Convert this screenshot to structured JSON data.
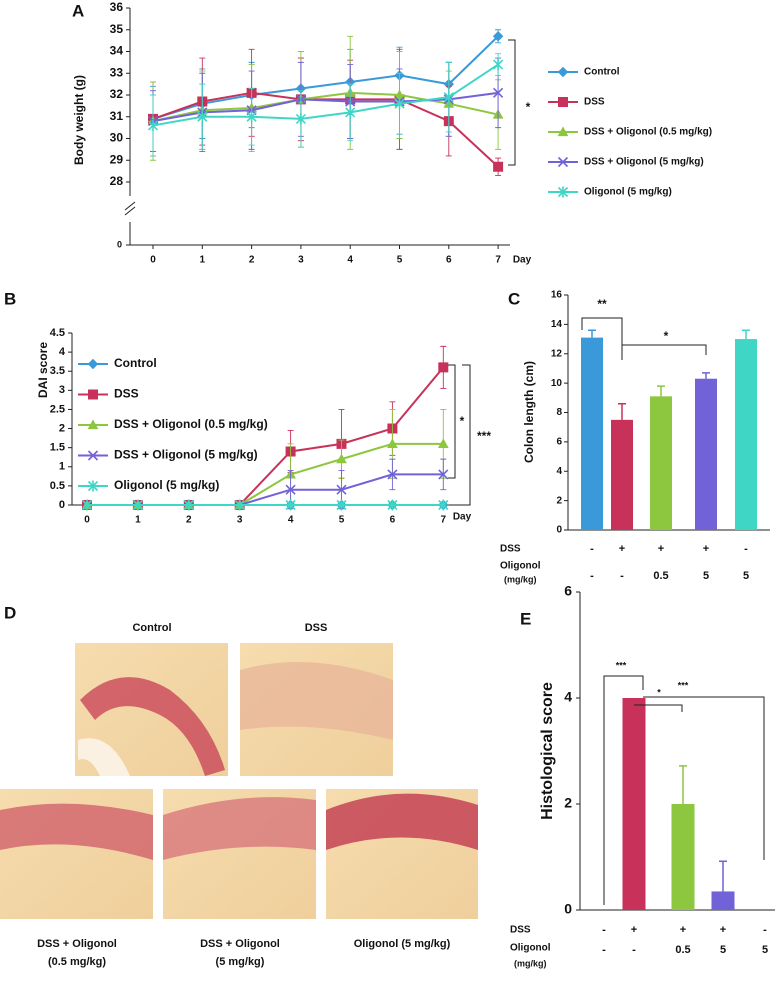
{
  "panel_labels": [
    "A",
    "B",
    "C",
    "D",
    "E"
  ],
  "chart_data": [
    {
      "type": "line",
      "x": [
        0,
        1,
        2,
        3,
        4,
        5,
        6,
        7
      ],
      "x_label": "Day",
      "y_label": "Body weight (g)",
      "ylim": [
        28,
        36
      ],
      "yticks": [
        28,
        29,
        30,
        31,
        32,
        33,
        34,
        35,
        36
      ],
      "y_break_tick": 0,
      "legend": "right",
      "annotations": [
        "*"
      ],
      "series": [
        {
          "name": "Control",
          "color": "#3a9ad9",
          "values": [
            30.9,
            31.6,
            32.0,
            32.3,
            32.6,
            32.9,
            32.5,
            34.7
          ],
          "errors": [
            1.5,
            1.6,
            1.5,
            1.4,
            1.5,
            1.3,
            1.0,
            0.3
          ]
        },
        {
          "name": "DSS",
          "color": "#c8325a",
          "values": [
            30.9,
            31.7,
            32.1,
            31.8,
            31.8,
            31.8,
            30.8,
            28.7
          ],
          "errors": [
            1.7,
            2.0,
            2.0,
            1.9,
            1.8,
            2.3,
            1.6,
            0.4
          ]
        },
        {
          "name": "DSS + Oligonol (0.5 mg/kg)",
          "color": "#8dc63f",
          "values": [
            30.8,
            31.3,
            31.4,
            31.8,
            32.1,
            32.0,
            31.6,
            31.1
          ],
          "errors": [
            1.8,
            1.8,
            2.0,
            2.2,
            2.6,
            2.0,
            1.5,
            1.6
          ]
        },
        {
          "name": "DSS + Oligonol (5 mg/kg)",
          "color": "#7162d8",
          "values": [
            30.8,
            31.2,
            31.3,
            31.8,
            31.7,
            31.7,
            31.8,
            32.1
          ],
          "errors": [
            1.4,
            1.8,
            1.8,
            1.7,
            1.7,
            1.5,
            1.7,
            1.6
          ]
        },
        {
          "name": "Oligonol (5 mg/kg)",
          "color": "#3fd6c6",
          "values": [
            30.6,
            31.0,
            31.0,
            30.9,
            31.2,
            31.6,
            31.9,
            33.4
          ],
          "errors": [
            1.4,
            1.5,
            1.3,
            1.3,
            1.3,
            1.4,
            1.6,
            0.5
          ]
        }
      ]
    },
    {
      "type": "line",
      "x": [
        0,
        1,
        2,
        3,
        4,
        5,
        6,
        7
      ],
      "x_label": "Day",
      "y_label": "DAI score",
      "ylim": [
        0,
        4.5
      ],
      "yticks": [
        0,
        0.5,
        1,
        1.5,
        2,
        2.5,
        3,
        3.5,
        4,
        4.5
      ],
      "legend": "upper left",
      "annotations": [
        "*",
        "***"
      ],
      "series": [
        {
          "name": "Control",
          "color": "#3a9ad9",
          "values": [
            0,
            0,
            0,
            0,
            0,
            0,
            0,
            0
          ],
          "errors": [
            0,
            0,
            0,
            0,
            0,
            0,
            0,
            0
          ]
        },
        {
          "name": "DSS",
          "color": "#c8325a",
          "values": [
            0,
            0,
            0,
            0,
            1.4,
            1.6,
            2.0,
            3.6
          ],
          "errors": [
            0,
            0,
            0,
            0,
            0.55,
            0.9,
            0.7,
            0.55
          ]
        },
        {
          "name": "DSS + Oligonol (0.5 mg/kg)",
          "color": "#8dc63f",
          "values": [
            0,
            0,
            0,
            0,
            0.8,
            1.2,
            1.6,
            1.6
          ],
          "errors": [
            0,
            0,
            0,
            0,
            0.8,
            0.5,
            0.9,
            0.9
          ]
        },
        {
          "name": "DSS + Oligonol (5 mg/kg)",
          "color": "#7162d8",
          "values": [
            0,
            0,
            0,
            0,
            0.4,
            0.4,
            0.8,
            0.8
          ],
          "errors": [
            0,
            0,
            0,
            0,
            0.5,
            0.5,
            0.4,
            0.4
          ]
        },
        {
          "name": "Oligonol (5 mg/kg)",
          "color": "#3fd6c6",
          "values": [
            0,
            0,
            0,
            0,
            0,
            0,
            0,
            0
          ],
          "errors": [
            0,
            0,
            0,
            0,
            0,
            0,
            0,
            0
          ]
        }
      ]
    },
    {
      "type": "bar",
      "y_label": "Colon length (cm)",
      "ylim": [
        0,
        16
      ],
      "yticks": [
        0,
        2,
        4,
        6,
        8,
        10,
        12,
        14,
        16
      ],
      "values": [
        13.1,
        7.5,
        9.1,
        10.3,
        13.0
      ],
      "errors": [
        0.5,
        1.1,
        0.7,
        0.4,
        0.6
      ],
      "colors": [
        "#3a9ad9",
        "#c8325a",
        "#8dc63f",
        "#7162d8",
        "#3fd6c6"
      ],
      "condition_rows": [
        {
          "label": "DSS",
          "values": [
            "-",
            "+",
            "+",
            "+",
            "-"
          ]
        },
        {
          "label": "Oligonol",
          "unit": "(mg/kg)",
          "values": [
            "-",
            "-",
            "0.5",
            "5",
            "5"
          ]
        }
      ],
      "annotations": [
        "**",
        "*"
      ]
    },
    {
      "type": "bar",
      "y_label": "Histological score",
      "ylim": [
        0,
        6
      ],
      "yticks": [
        0,
        2,
        4,
        6
      ],
      "values": [
        0,
        4.0,
        2.0,
        0.35,
        0
      ],
      "errors": [
        0,
        0,
        0.72,
        0.57,
        0
      ],
      "colors": [
        "#3a9ad9",
        "#c8325a",
        "#8dc63f",
        "#7162d8",
        "#3fd6c6"
      ],
      "condition_rows": [
        {
          "label": "DSS",
          "values": [
            "-",
            "+",
            "+",
            "+",
            "-"
          ]
        },
        {
          "label": "Oligonol",
          "unit": "(mg/kg)",
          "values": [
            "-",
            "-",
            "0.5",
            "5",
            "5"
          ]
        }
      ],
      "annotations": [
        "***",
        "*",
        "***"
      ]
    }
  ],
  "histology": {
    "images": [
      {
        "lines": [
          "Control"
        ]
      },
      {
        "lines": [
          "DSS"
        ]
      },
      {
        "lines": [
          "DSS + Oligonol",
          "(0.5 mg/kg)"
        ]
      },
      {
        "lines": [
          "DSS + Oligonol",
          "(5 mg/kg)"
        ]
      },
      {
        "lines": [
          "Oligonol  (5 mg/kg)"
        ]
      }
    ]
  }
}
